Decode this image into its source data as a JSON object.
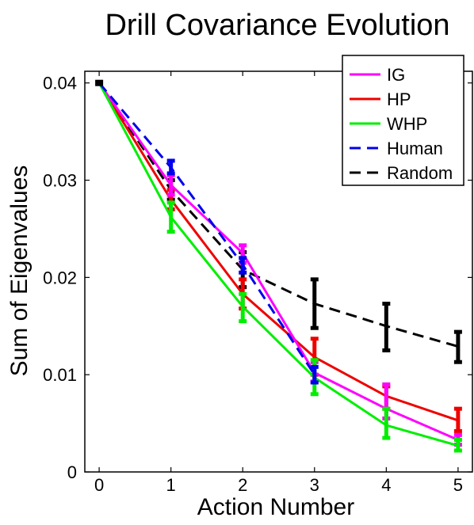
{
  "chart_data": {
    "type": "line",
    "title": "Drill Covariance Evolution",
    "xlabel": "Action Number",
    "ylabel": "Sum of Eigenvalues",
    "xlim": [
      0,
      5
    ],
    "ylim": [
      0,
      0.04
    ],
    "x": [
      0,
      1,
      2,
      3,
      4,
      5
    ],
    "xticks": [
      "0",
      "1",
      "2",
      "3",
      "4",
      "5"
    ],
    "yticks": [
      {
        "value": 0,
        "label": "0"
      },
      {
        "value": 0.01,
        "label": "0.01"
      },
      {
        "value": 0.02,
        "label": "0.02"
      },
      {
        "value": 0.03,
        "label": "0.03"
      },
      {
        "value": 0.04,
        "label": "0.04"
      }
    ],
    "grid": false,
    "legend_position": "top-right",
    "series": [
      {
        "name": "IG",
        "color": "#ff00ff",
        "dash": "solid",
        "values": [
          0.04,
          0.0295,
          0.0225,
          0.0102,
          0.0065,
          0.0033
        ],
        "err_low": [
          0.04,
          0.0285,
          0.0215,
          0.0093,
          0.0055,
          0.0028
        ],
        "err_high": [
          0.04,
          0.0305,
          0.0233,
          0.0113,
          0.009,
          0.0038
        ]
      },
      {
        "name": "HP",
        "color": "#ee0000",
        "dash": "solid",
        "values": [
          0.04,
          0.028,
          0.0183,
          0.0118,
          0.0078,
          0.0053
        ],
        "err_low": [
          0.04,
          0.027,
          0.0168,
          0.01,
          0.0065,
          0.0042
        ],
        "err_high": [
          0.04,
          0.029,
          0.0198,
          0.0137,
          0.0088,
          0.0065
        ]
      },
      {
        "name": "WHP",
        "color": "#00ee00",
        "dash": "solid",
        "values": [
          0.04,
          0.0262,
          0.017,
          0.0097,
          0.0048,
          0.0027
        ],
        "err_low": [
          0.04,
          0.0247,
          0.0155,
          0.008,
          0.0035,
          0.0022
        ],
        "err_high": [
          0.04,
          0.0277,
          0.0183,
          0.0115,
          0.0065,
          0.0033
        ]
      },
      {
        "name": "Human",
        "color": "#0000ee",
        "dash": "dashed",
        "values": [
          0.04,
          0.0313,
          0.0213,
          0.01,
          null,
          null
        ],
        "err_low": [
          0.04,
          0.0307,
          0.0205,
          0.0092,
          null,
          null
        ],
        "err_high": [
          0.04,
          0.032,
          0.022,
          0.0108,
          null,
          null
        ]
      },
      {
        "name": "Random",
        "color": "#000000",
        "dash": "dashed",
        "values": [
          0.04,
          0.029,
          0.0208,
          0.0173,
          0.015,
          0.0129
        ],
        "err_low": [
          0.04,
          0.028,
          0.019,
          0.0148,
          0.0125,
          0.0113
        ],
        "err_high": [
          0.04,
          0.03,
          0.0226,
          0.0198,
          0.0173,
          0.0144
        ]
      }
    ]
  }
}
